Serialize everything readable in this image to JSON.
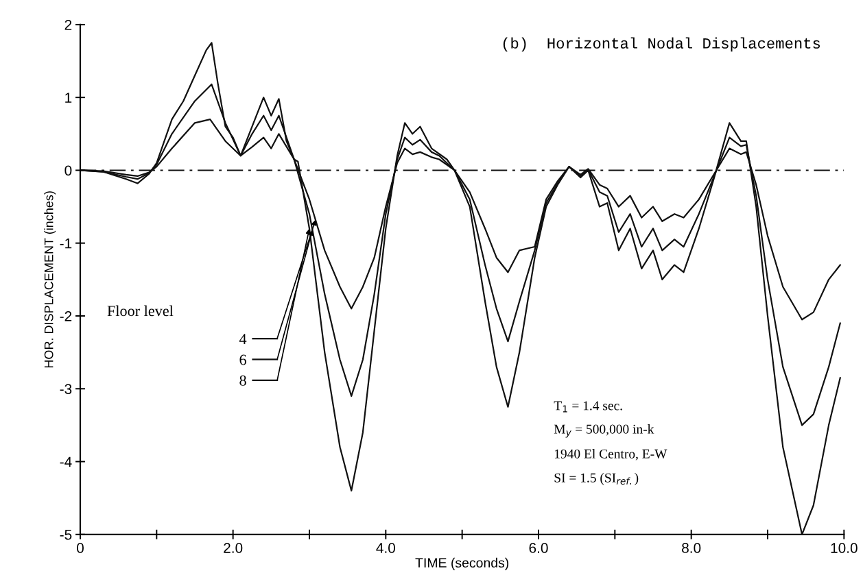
{
  "chart_data": {
    "type": "line",
    "title": "(b)  Horizontal Nodal Displacements",
    "xlabel": "TIME (seconds)",
    "ylabel": "HOR. DISPLACEMENT (inches)",
    "legend_title": "Floor level",
    "xlim": [
      0,
      10
    ],
    "ylim": [
      -5,
      2
    ],
    "xticks": [
      {
        "value": 0,
        "label": "0"
      },
      {
        "value": 1,
        "label": null
      },
      {
        "value": 2,
        "label": "2.0"
      },
      {
        "value": 3,
        "label": null
      },
      {
        "value": 4,
        "label": "4.0"
      },
      {
        "value": 5,
        "label": null
      },
      {
        "value": 6,
        "label": "6.0"
      },
      {
        "value": 7,
        "label": null
      },
      {
        "value": 8,
        "label": "8.0"
      },
      {
        "value": 9,
        "label": null
      },
      {
        "value": 10,
        "label": "10.0"
      }
    ],
    "yticks": [
      -5,
      -4,
      -3,
      -2,
      -1,
      0,
      1,
      2
    ],
    "grid": false,
    "legend": "left",
    "line_style": "solid",
    "marker": "none",
    "series": [
      {
        "name": "4",
        "color": "#111111",
        "x": [
          0,
          0.3,
          0.6,
          0.75,
          0.9,
          1.0,
          1.2,
          1.5,
          1.7,
          1.9,
          2.1,
          2.25,
          2.4,
          2.5,
          2.6,
          2.8,
          3.0,
          3.2,
          3.4,
          3.55,
          3.7,
          3.85,
          4.0,
          4.15,
          4.25,
          4.35,
          4.45,
          4.6,
          4.7,
          4.9,
          5.1,
          5.3,
          5.45,
          5.6,
          5.75,
          5.95,
          6.1,
          6.25,
          6.4,
          6.55,
          6.65,
          6.8,
          6.9,
          7.05,
          7.2,
          7.35,
          7.5,
          7.62,
          7.78,
          7.9,
          8.1,
          8.3,
          8.5,
          8.65,
          8.72,
          8.85,
          9.0,
          9.2,
          9.45,
          9.6,
          9.8,
          9.95
        ],
        "values": [
          0,
          -0.01,
          -0.06,
          -0.08,
          -0.03,
          0.05,
          0.3,
          0.65,
          0.7,
          0.4,
          0.2,
          0.32,
          0.45,
          0.3,
          0.5,
          0.15,
          -0.4,
          -1.1,
          -1.6,
          -1.9,
          -1.6,
          -1.2,
          -0.5,
          0.1,
          0.3,
          0.22,
          0.25,
          0.18,
          0.15,
          0,
          -0.3,
          -0.8,
          -1.2,
          -1.4,
          -1.1,
          -1.05,
          -0.4,
          -0.15,
          0.05,
          -0.06,
          0.02,
          -0.2,
          -0.25,
          -0.5,
          -0.35,
          -0.65,
          -0.5,
          -0.7,
          -0.6,
          -0.65,
          -0.4,
          -0.05,
          0.3,
          0.22,
          0.25,
          -0.2,
          -0.9,
          -1.6,
          -2.05,
          -1.95,
          -1.5,
          -1.3
        ]
      },
      {
        "name": "6",
        "color": "#111111",
        "x": [
          0,
          0.3,
          0.6,
          0.75,
          0.9,
          1.0,
          1.2,
          1.5,
          1.72,
          1.9,
          2.1,
          2.25,
          2.4,
          2.5,
          2.6,
          2.8,
          3.0,
          3.2,
          3.4,
          3.55,
          3.7,
          3.85,
          4.0,
          4.15,
          4.25,
          4.35,
          4.45,
          4.6,
          4.7,
          4.9,
          5.1,
          5.3,
          5.45,
          5.6,
          5.75,
          5.95,
          6.1,
          6.25,
          6.4,
          6.55,
          6.65,
          6.8,
          6.9,
          7.05,
          7.2,
          7.35,
          7.5,
          7.62,
          7.78,
          7.9,
          8.1,
          8.3,
          8.5,
          8.65,
          8.72,
          8.85,
          9.0,
          9.2,
          9.45,
          9.6,
          9.8,
          9.95
        ],
        "values": [
          0,
          -0.02,
          -0.09,
          -0.12,
          -0.04,
          0.08,
          0.5,
          0.95,
          1.18,
          0.65,
          0.2,
          0.5,
          0.75,
          0.55,
          0.75,
          0.15,
          -0.6,
          -1.7,
          -2.6,
          -3.1,
          -2.6,
          -1.7,
          -0.6,
          0.15,
          0.45,
          0.35,
          0.42,
          0.25,
          0.2,
          0,
          -0.4,
          -1.3,
          -1.9,
          -2.35,
          -1.8,
          -1.1,
          -0.45,
          -0.18,
          0.05,
          -0.08,
          0.01,
          -0.3,
          -0.35,
          -0.85,
          -0.6,
          -1.05,
          -0.8,
          -1.1,
          -0.95,
          -1.05,
          -0.6,
          -0.08,
          0.45,
          0.33,
          0.35,
          -0.35,
          -1.5,
          -2.7,
          -3.5,
          -3.35,
          -2.7,
          -2.1
        ]
      },
      {
        "name": "8",
        "color": "#111111",
        "x": [
          0,
          0.3,
          0.6,
          0.75,
          0.9,
          1.0,
          1.2,
          1.35,
          1.5,
          1.65,
          1.72,
          1.8,
          1.9,
          2.0,
          2.1,
          2.25,
          2.4,
          2.5,
          2.6,
          2.7,
          2.8,
          2.85,
          3.0,
          3.2,
          3.4,
          3.55,
          3.7,
          3.85,
          4.0,
          4.15,
          4.25,
          4.35,
          4.45,
          4.6,
          4.8,
          4.9,
          5.1,
          5.3,
          5.45,
          5.6,
          5.75,
          5.95,
          6.1,
          6.25,
          6.4,
          6.55,
          6.65,
          6.8,
          6.9,
          7.05,
          7.2,
          7.35,
          7.5,
          7.62,
          7.78,
          7.9,
          8.1,
          8.3,
          8.5,
          8.65,
          8.72,
          8.85,
          9.0,
          9.2,
          9.45,
          9.6,
          9.8,
          9.95
        ],
        "values": [
          0,
          -0.02,
          -0.12,
          -0.18,
          -0.05,
          0.1,
          0.7,
          0.95,
          1.3,
          1.65,
          1.75,
          1.2,
          0.6,
          0.45,
          0.2,
          0.6,
          1.0,
          0.75,
          0.98,
          0.4,
          0.15,
          0.12,
          -0.8,
          -2.5,
          -3.8,
          -4.4,
          -3.6,
          -2.2,
          -0.8,
          0.2,
          0.65,
          0.5,
          0.6,
          0.3,
          0.15,
          0,
          -0.5,
          -1.8,
          -2.7,
          -3.25,
          -2.5,
          -1.2,
          -0.5,
          -0.2,
          0.05,
          -0.1,
          0,
          -0.5,
          -0.45,
          -1.1,
          -0.8,
          -1.35,
          -1.1,
          -1.5,
          -1.3,
          -1.4,
          -0.8,
          -0.1,
          0.65,
          0.4,
          0.4,
          -0.5,
          -2.0,
          -3.8,
          -5.0,
          -4.6,
          -3.5,
          -2.85
        ]
      }
    ],
    "ref_lines": [
      {
        "axis": "y",
        "value": 0,
        "color": "#111111",
        "line_style": "dashdot"
      }
    ],
    "annotations": [
      "T$_{1}$ = 1.4 sec.",
      "M$_{y}$ = 500,000 in-k",
      "1940 El Centro, E-W",
      "SI = 1.5 (SI$_{ref.}$)"
    ]
  }
}
